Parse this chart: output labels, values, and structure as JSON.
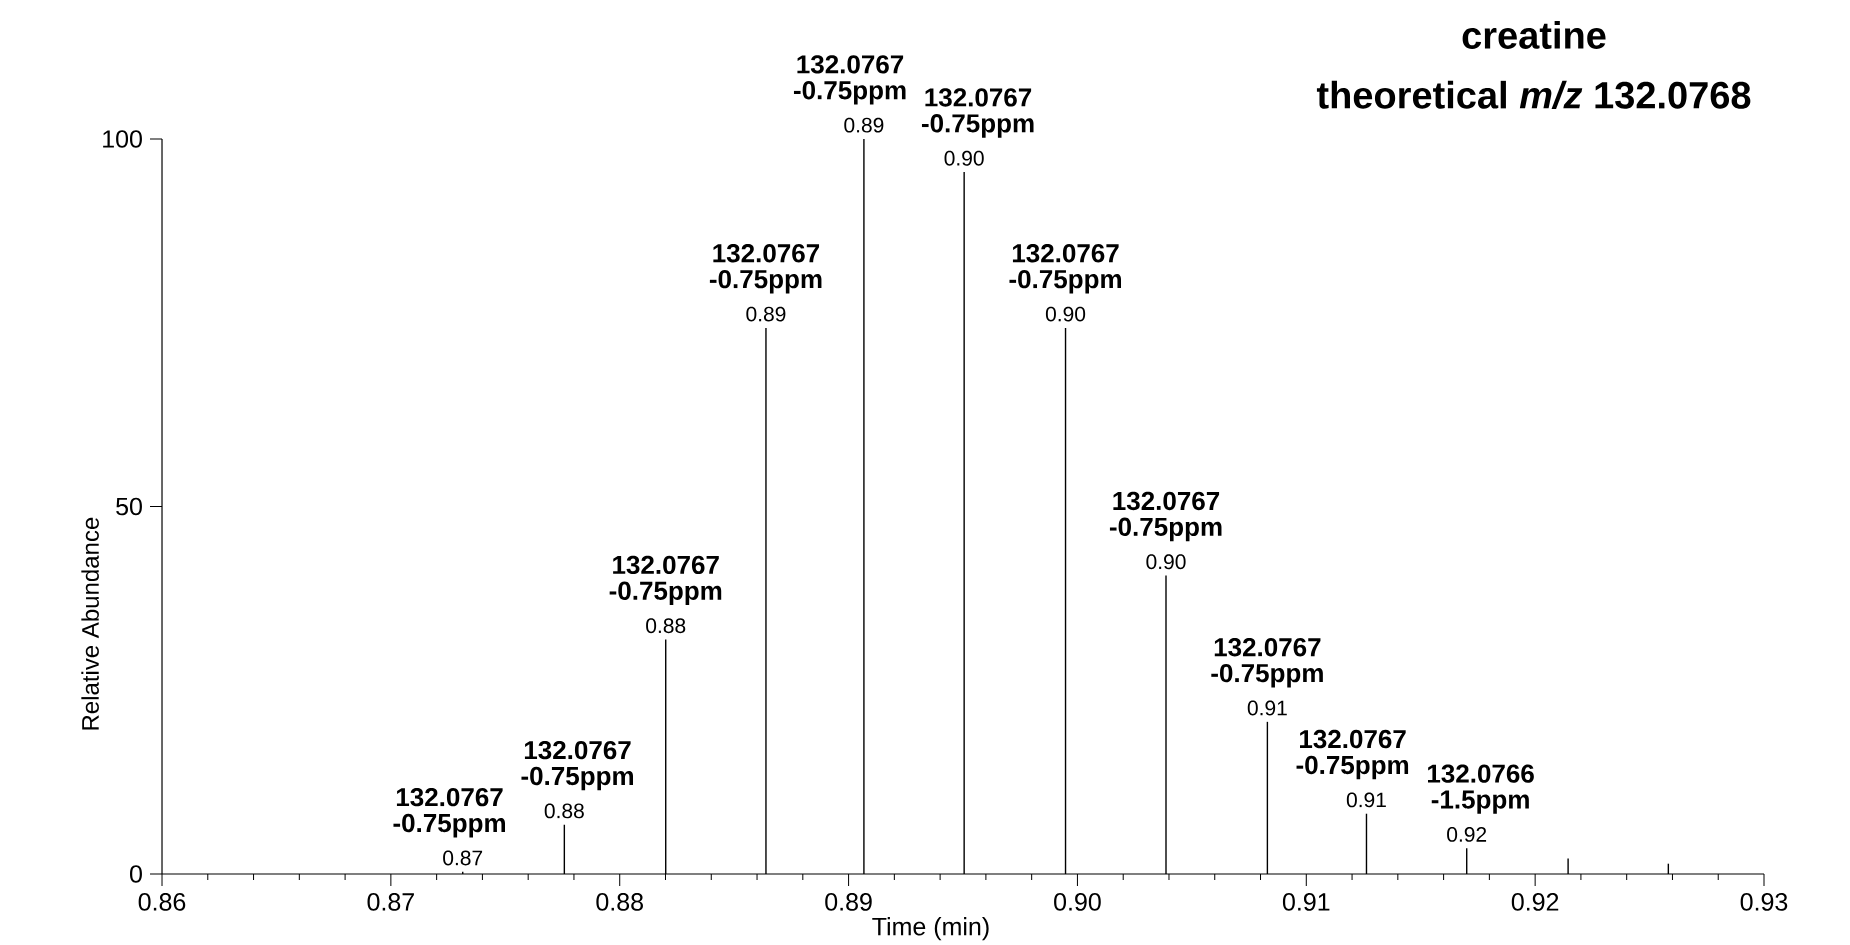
{
  "chart_data": {
    "type": "bar",
    "title": "creatine",
    "subtitle": "theoretical *m/z* 132.0768",
    "xlabel": "Time (min)",
    "ylabel": "Relative Abundance",
    "x": [
      0.87314,
      0.87758,
      0.88201,
      0.88639,
      0.89067,
      0.89505,
      0.89948,
      0.90387,
      0.9083,
      0.91263,
      0.91701,
      0.92144,
      0.92582
    ],
    "values": [
      0.3,
      6.7,
      31.9,
      74.3,
      100,
      95.5,
      74.3,
      40.6,
      20.7,
      8.2,
      3.5,
      2.1,
      1.4
    ],
    "color": "#000000",
    "xlim": [
      0.86,
      0.93
    ],
    "xticks": [
      0.86,
      0.87,
      0.88,
      0.89,
      {
        "value": 0.9,
        "label": "0.90"
      },
      0.91,
      0.92,
      0.93
    ],
    "ylim": [
      0,
      100
    ],
    "yticks": [
      0,
      50,
      100
    ],
    "annotations": [
      {
        "text": "132.0767",
        "x": 0.87314,
        "y": 0.3
      },
      {
        "text": "-0.75ppm",
        "x": 0.87314,
        "y": 0.3
      },
      {
        "text": "0.87",
        "x": 0.87314,
        "y": 0.3
      },
      {
        "text": "132.0767",
        "x": 0.87758,
        "y": 6.7
      },
      {
        "text": "-0.75ppm",
        "x": 0.87758,
        "y": 6.7
      },
      {
        "text": "0.88",
        "x": 0.87758,
        "y": 6.7
      },
      {
        "text": "132.0767",
        "x": 0.88201,
        "y": 31.9
      },
      {
        "text": "-0.75ppm",
        "x": 0.88201,
        "y": 31.9
      },
      {
        "text": "0.88",
        "x": 0.88201,
        "y": 31.9
      },
      {
        "text": "132.0767",
        "x": 0.88639,
        "y": 74.3
      },
      {
        "text": "-0.75ppm",
        "x": 0.88639,
        "y": 74.3
      },
      {
        "text": "0.89",
        "x": 0.88639,
        "y": 74.3
      },
      {
        "text": "132.0767",
        "x": 0.89067,
        "y": 100
      },
      {
        "text": "-0.75ppm",
        "x": 0.89067,
        "y": 100
      },
      {
        "text": "0.89",
        "x": 0.89067,
        "y": 100
      },
      {
        "text": "132.0767",
        "x": 0.89505,
        "y": 95.5
      },
      {
        "text": "-0.75ppm",
        "x": 0.89505,
        "y": 95.5
      },
      {
        "text": "0.90",
        "x": 0.89505,
        "y": 95.5
      },
      {
        "text": "132.0767",
        "x": 0.89948,
        "y": 74.3
      },
      {
        "text": "-0.75ppm",
        "x": 0.89948,
        "y": 74.3
      },
      {
        "text": "0.90",
        "x": 0.89948,
        "y": 74.3
      },
      {
        "text": "132.0767",
        "x": 0.90387,
        "y": 40.6
      },
      {
        "text": "-0.75ppm",
        "x": 0.90387,
        "y": 40.6
      },
      {
        "text": "0.90",
        "x": 0.90387,
        "y": 40.6
      },
      {
        "text": "132.0767",
        "x": 0.9083,
        "y": 20.7
      },
      {
        "text": "-0.75ppm",
        "x": 0.9083,
        "y": 20.7
      },
      {
        "text": "0.91",
        "x": 0.9083,
        "y": 20.7
      },
      {
        "text": "132.0767",
        "x": 0.91263,
        "y": 8.2
      },
      {
        "text": "-0.75ppm",
        "x": 0.91263,
        "y": 8.2
      },
      {
        "text": "0.91",
        "x": 0.91263,
        "y": 8.2
      },
      {
        "text": "132.0766",
        "x": 0.91701,
        "y": 3.5
      },
      {
        "text": "-1.5ppm",
        "x": 0.91701,
        "y": 3.5
      },
      {
        "text": "0.92",
        "x": 0.91701,
        "y": 3.5
      }
    ]
  }
}
